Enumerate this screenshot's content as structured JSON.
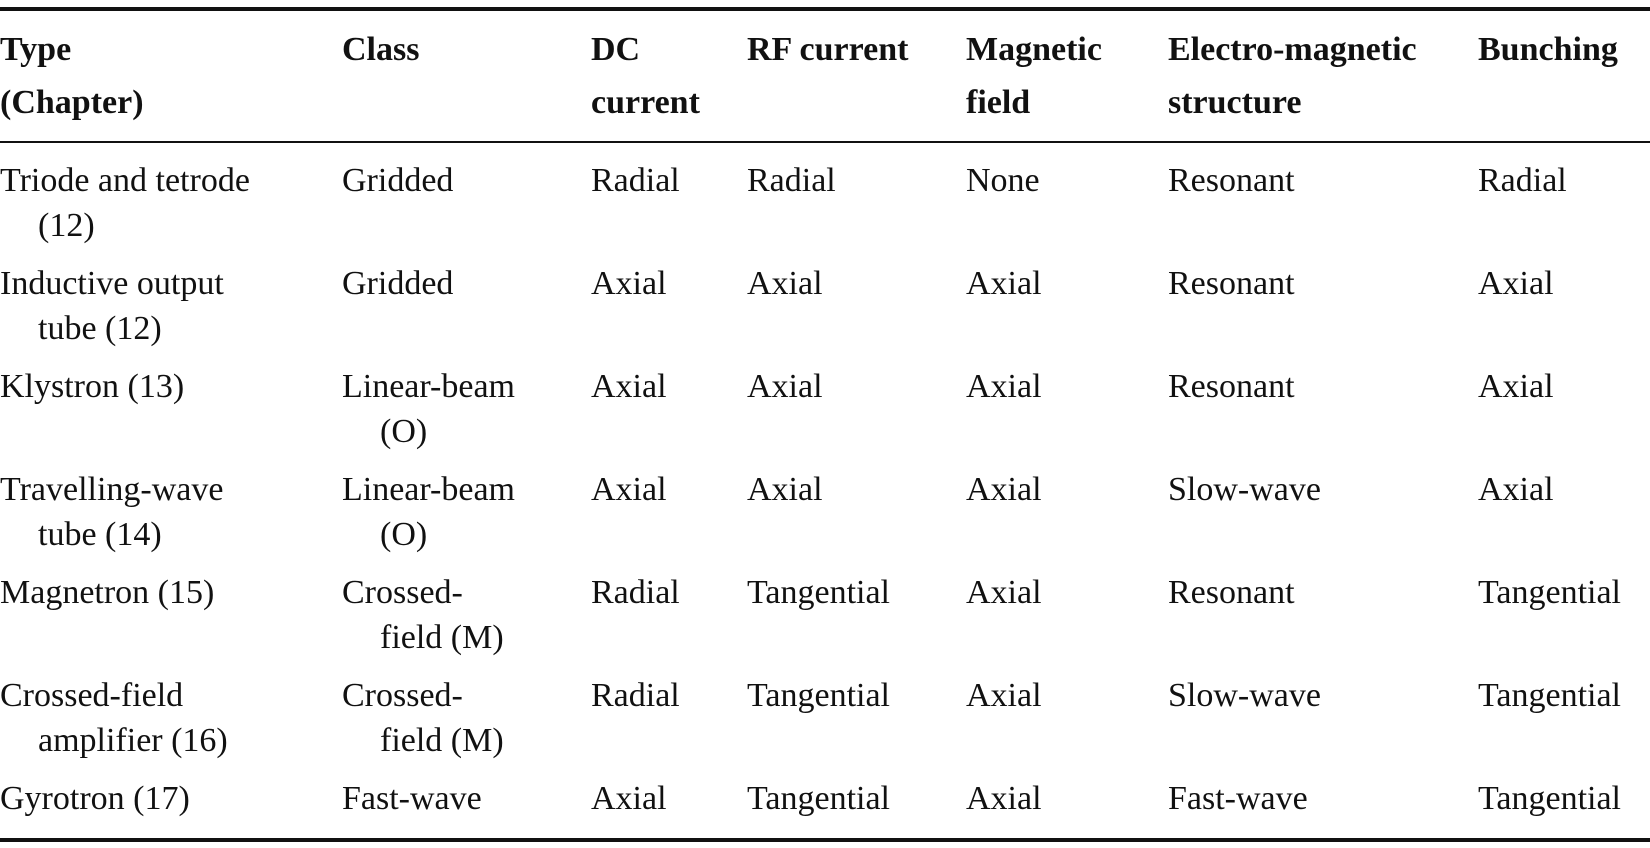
{
  "table": {
    "headers": [
      [
        "Type",
        "(Chapter)"
      ],
      [
        "Class"
      ],
      [
        "DC",
        "current"
      ],
      [
        "RF current"
      ],
      [
        "Magnetic",
        "field"
      ],
      [
        "Electro-magnetic",
        "structure"
      ],
      [
        "Bunching"
      ]
    ],
    "rows": [
      [
        "Triode and tetrode (12)",
        "Gridded",
        "Radial",
        "Radial",
        "None",
        "Resonant",
        "Radial"
      ],
      [
        "Inductive output tube (12)",
        "Gridded",
        "Axial",
        "Axial",
        "Axial",
        "Resonant",
        "Axial"
      ],
      [
        "Klystron (13)",
        "Linear-beam (O)",
        "Axial",
        "Axial",
        "Axial",
        "Resonant",
        "Axial"
      ],
      [
        "Travelling-wave tube (14)",
        "Linear-beam (O)",
        "Axial",
        "Axial",
        "Axial",
        "Slow-wave",
        "Axial"
      ],
      [
        "Magnetron (15)",
        "Crossed-field (M)",
        "Radial",
        "Tangential",
        "Axial",
        "Resonant",
        "Tangential"
      ],
      [
        "Crossed-field amplifier (16)",
        "Crossed-field (M)",
        "Radial",
        "Tangential",
        "Axial",
        "Slow-wave",
        "Tangential"
      ],
      [
        "Gyrotron (17)",
        "Fast-wave",
        "Axial",
        "Tangential",
        "Axial",
        "Fast-wave",
        "Tangential"
      ]
    ]
  }
}
